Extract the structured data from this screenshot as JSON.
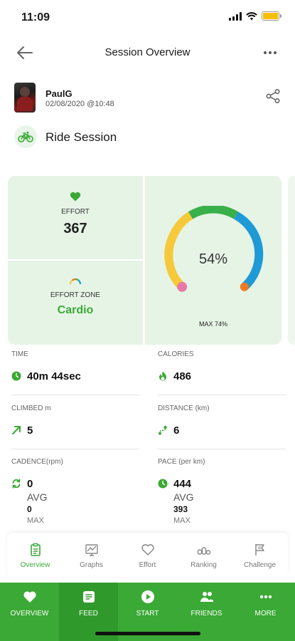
{
  "status_bar": {
    "time": "11:09"
  },
  "header": {
    "title": "Session Overview",
    "back_icon": "back-arrow-icon",
    "more_icon": "more-dots-icon"
  },
  "user": {
    "name": "PaulG",
    "date": "02/08/2020 @10:48",
    "share_icon": "share-icon"
  },
  "session": {
    "type_label": "Ride Session",
    "icon": "bike-icon"
  },
  "effort": {
    "label": "EFFORT",
    "value": "367"
  },
  "effort_zone": {
    "label": "EFFORT ZONE",
    "value": "Cardio"
  },
  "gauge": {
    "percent_label": "54%",
    "max_label": "MAX 74%",
    "percent": 54,
    "max": 74
  },
  "stats": {
    "time": {
      "label": "TIME",
      "value": "40m 44sec"
    },
    "calories": {
      "label": "CALORIES",
      "value": "486"
    },
    "climbed": {
      "label": "CLIMBED m",
      "value": "5"
    },
    "distance": {
      "label": "DISTANCE (km)",
      "value": "6"
    },
    "cadence": {
      "label": "CADENCE(rpm)",
      "value": "0",
      "avg_label": "AVG",
      "max_value": "0",
      "max_label": "MAX"
    },
    "pace": {
      "label": "PACE (per km)",
      "value": "444",
      "avg_label": "AVG",
      "max_value": "393",
      "max_label": "MAX"
    }
  },
  "subtabs": [
    {
      "label": "Overview",
      "icon": "clipboard-icon",
      "active": true
    },
    {
      "label": "Graphs",
      "icon": "graph-icon",
      "active": false
    },
    {
      "label": "Effort",
      "icon": "heart-outline-icon",
      "active": false
    },
    {
      "label": "Ranking",
      "icon": "ranking-icon",
      "active": false
    },
    {
      "label": "Challenge",
      "icon": "flag-icon",
      "active": false
    }
  ],
  "bottom_nav": [
    {
      "label": "OVERVIEW",
      "icon": "heart-icon",
      "active": false
    },
    {
      "label": "FEED",
      "icon": "feed-icon",
      "active": true
    },
    {
      "label": "START",
      "icon": "play-icon",
      "active": false
    },
    {
      "label": "FRIENDS",
      "icon": "friends-icon",
      "active": false
    },
    {
      "label": "MORE",
      "icon": "more-dots-icon",
      "active": false
    }
  ],
  "colors": {
    "brand_green": "#3aa935",
    "card_bg": "#e6f4e6",
    "gauge_yellow": "#f5c93a",
    "gauge_green": "#3ab04a",
    "gauge_blue": "#1e9ad6",
    "gauge_pink": "#e87aa8",
    "gauge_orange": "#f07a20"
  }
}
